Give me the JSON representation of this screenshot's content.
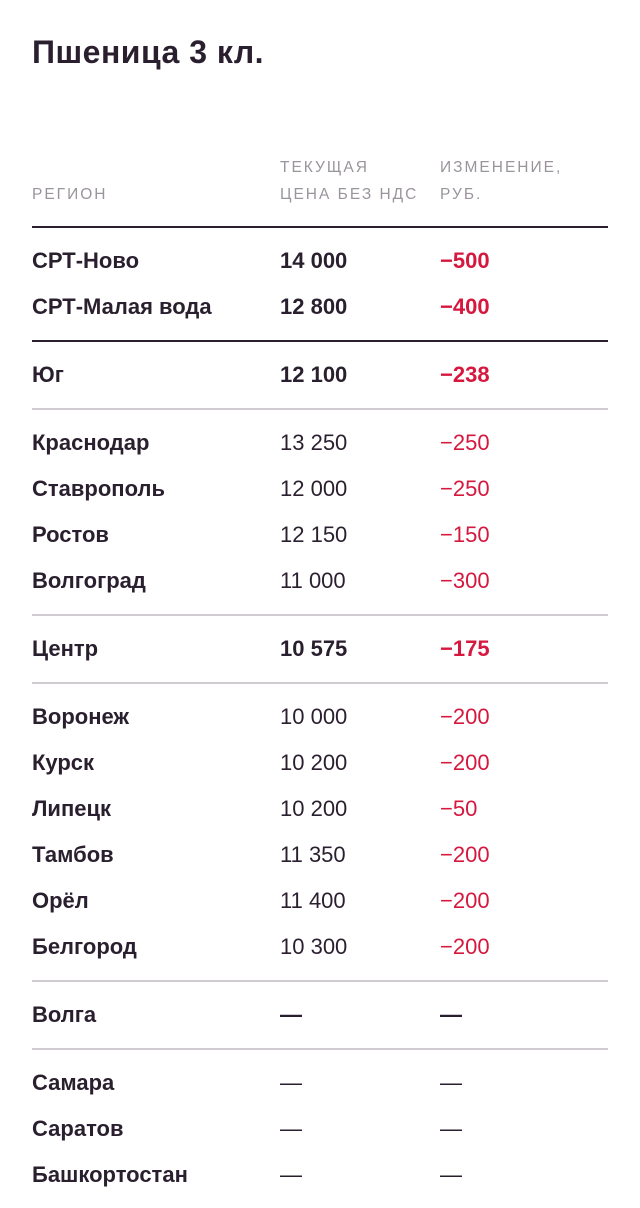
{
  "title": "Пшеница 3 кл.",
  "header": {
    "region": "РЕГИОН",
    "price": "ТЕКУЩАЯ ЦЕНА БЕЗ НДС",
    "change": "ИЗМЕНЕНИЕ, РУБ."
  },
  "groups": [
    {
      "rows": [
        {
          "region": "СРТ-Ново",
          "price": "14 000",
          "change": "−500"
        },
        {
          "region": "СРТ-Малая вода",
          "price": "12 800",
          "change": "−400"
        }
      ]
    },
    {
      "rows": [
        {
          "region": "Юг",
          "price": "12 100",
          "change": "−238"
        }
      ]
    },
    {
      "rows": [
        {
          "region": "Краснодар",
          "price": "13 250",
          "change": "−250"
        },
        {
          "region": "Ставрополь",
          "price": "12 000",
          "change": "−250"
        },
        {
          "region": "Ростов",
          "price": "12 150",
          "change": "−150"
        },
        {
          "region": "Волгоград",
          "price": "11 000",
          "change": "−300"
        }
      ]
    },
    {
      "rows": [
        {
          "region": "Центр",
          "price": "10 575",
          "change": "−175"
        }
      ]
    },
    {
      "rows": [
        {
          "region": "Воронеж",
          "price": "10 000",
          "change": "−200"
        },
        {
          "region": "Курск",
          "price": "10 200",
          "change": "−200"
        },
        {
          "region": "Липецк",
          "price": "10 200",
          "change": "−50"
        },
        {
          "region": "Тамбов",
          "price": "11 350",
          "change": "−200"
        },
        {
          "region": "Орёл",
          "price": "11 400",
          "change": "−200"
        },
        {
          "region": "Белгород",
          "price": "10 300",
          "change": "−200"
        }
      ]
    },
    {
      "rows": [
        {
          "region": "Волга",
          "price": "—",
          "change": "—"
        }
      ]
    },
    {
      "rows": [
        {
          "region": "Самара",
          "price": "—",
          "change": "—"
        },
        {
          "region": "Саратов",
          "price": "—",
          "change": "—"
        },
        {
          "region": "Башкортостан",
          "price": "—",
          "change": "—"
        }
      ]
    }
  ],
  "colors": {
    "text": "#2a1f2e",
    "muted": "#9a949c",
    "negative": "#d6173e",
    "divider": "#cfcbd0"
  }
}
